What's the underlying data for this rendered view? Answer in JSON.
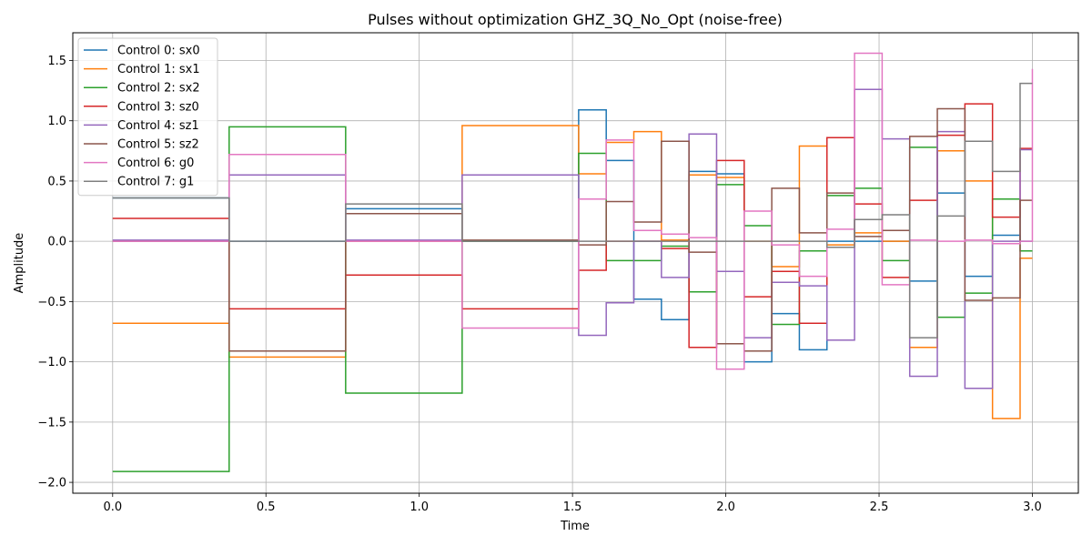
{
  "chart_data": {
    "type": "line",
    "step": "post",
    "title": "Pulses without optimization GHZ_3Q_No_Opt (noise-free)",
    "xlabel": "Time",
    "ylabel": "Amplitude",
    "xlim": [
      -0.13,
      3.15
    ],
    "ylim": [
      -2.09,
      1.73
    ],
    "grid": true,
    "legend_position": "upper-left",
    "x_ticks": [
      0.0,
      0.5,
      1.0,
      1.5,
      2.0,
      2.5,
      3.0
    ],
    "x_tick_labels": [
      "0.0",
      "0.5",
      "1.0",
      "1.5",
      "2.0",
      "2.5",
      "3.0"
    ],
    "y_ticks": [
      -2.0,
      -1.5,
      -1.0,
      -0.5,
      0.0,
      0.5,
      1.0,
      1.5
    ],
    "y_tick_labels": [
      "−2.0",
      "−1.5",
      "−1.0",
      "−0.5",
      "0.0",
      "0.5",
      "1.0",
      "1.5"
    ],
    "x": [
      0.0,
      0.38,
      0.76,
      1.14,
      1.52,
      1.61,
      1.7,
      1.79,
      1.88,
      1.97,
      2.06,
      2.15,
      2.24,
      2.33,
      2.42,
      2.51,
      2.6,
      2.69,
      2.78,
      2.87,
      2.96,
      3.0
    ],
    "series": [
      {
        "name": "Control 0: sx0",
        "color": "#1f77b4",
        "values": [
          0.36,
          0.0,
          0.27,
          0.0,
          1.09,
          0.67,
          -0.48,
          -0.65,
          0.58,
          0.56,
          -1.0,
          -0.6,
          -0.9,
          0.0,
          0.0,
          0.0,
          -0.33,
          0.4,
          -0.29,
          0.05,
          0.0,
          0.0
        ]
      },
      {
        "name": "Control 1: sx1",
        "color": "#ff7f0e",
        "values": [
          -0.68,
          -0.96,
          0.0,
          0.96,
          0.56,
          0.82,
          0.91,
          0.01,
          0.55,
          0.53,
          0.0,
          -0.21,
          0.79,
          -0.03,
          0.07,
          0.0,
          -0.88,
          0.75,
          0.5,
          -1.47,
          -0.14,
          -0.14
        ]
      },
      {
        "name": "Control 2: sx2",
        "color": "#2ca02c",
        "values": [
          -1.91,
          0.95,
          -1.26,
          0.0,
          0.73,
          -0.16,
          -0.16,
          -0.04,
          -0.42,
          0.47,
          0.13,
          -0.69,
          -0.08,
          0.38,
          0.44,
          -0.16,
          0.78,
          -0.63,
          -0.43,
          0.35,
          -0.08,
          -0.08
        ]
      },
      {
        "name": "Control 3: sz0",
        "color": "#d62728",
        "values": [
          0.19,
          -0.56,
          -0.28,
          -0.56,
          -0.24,
          0.0,
          0.0,
          -0.06,
          -0.88,
          0.67,
          -0.46,
          -0.25,
          -0.68,
          0.86,
          0.31,
          -0.3,
          0.34,
          0.88,
          1.14,
          0.2,
          0.77,
          0.77
        ]
      },
      {
        "name": "Control 4: sz1",
        "color": "#9467bd",
        "values": [
          0.01,
          0.55,
          0.01,
          0.55,
          -0.78,
          -0.51,
          0.0,
          -0.3,
          0.89,
          -0.25,
          -0.8,
          -0.34,
          -0.37,
          -0.82,
          1.26,
          0.85,
          -1.12,
          0.91,
          -1.22,
          0.0,
          0.76,
          0.76
        ]
      },
      {
        "name": "Control 5: sz2",
        "color": "#8c564b",
        "values": [
          0.0,
          -0.91,
          0.23,
          0.01,
          -0.03,
          0.33,
          0.16,
          0.83,
          -0.09,
          -0.85,
          -0.91,
          0.44,
          0.07,
          0.4,
          0.04,
          0.09,
          0.87,
          1.1,
          -0.49,
          -0.47,
          0.34,
          0.34
        ]
      },
      {
        "name": "Control 6: g0",
        "color": "#e377c2",
        "values": [
          0.0,
          0.72,
          0.0,
          -0.72,
          0.35,
          0.84,
          0.09,
          0.06,
          0.03,
          -1.06,
          0.25,
          -0.03,
          -0.29,
          0.1,
          1.56,
          -0.36,
          0.01,
          0.0,
          0.01,
          -0.02,
          0.0,
          1.43
        ]
      },
      {
        "name": "Control 7: g1",
        "color": "#7f7f7f",
        "values": [
          0.36,
          0.0,
          0.31,
          0.0,
          0.0,
          0.0,
          0.0,
          0.0,
          0.0,
          0.0,
          0.0,
          0.0,
          0.0,
          -0.05,
          0.18,
          0.22,
          -0.8,
          0.21,
          0.83,
          0.58,
          1.31,
          1.31
        ]
      }
    ]
  }
}
